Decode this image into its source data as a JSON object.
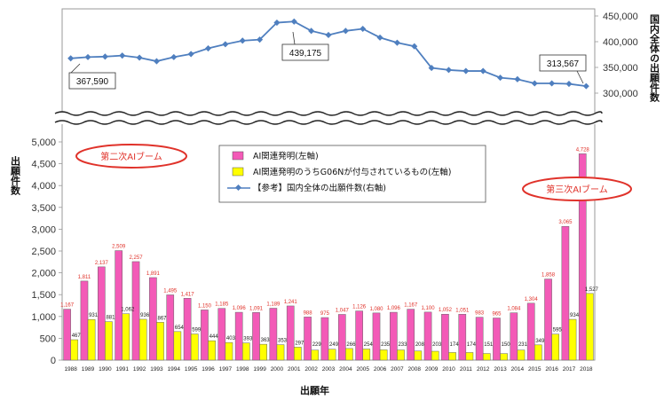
{
  "chart_data": {
    "type": "bar",
    "years": [
      "1988",
      "1989",
      "1990",
      "1991",
      "1992",
      "1993",
      "1994",
      "1995",
      "1996",
      "1997",
      "1998",
      "1999",
      "2000",
      "2001",
      "2002",
      "2003",
      "2004",
      "2005",
      "2006",
      "2007",
      "2008",
      "2009",
      "2010",
      "2011",
      "2012",
      "2013",
      "2014",
      "2015",
      "2016",
      "2017",
      "2018"
    ],
    "series": [
      {
        "name": "AI関連発明(左軸)",
        "kind": "bar",
        "color": "#f35ab7",
        "values": [
          1167,
          1811,
          2137,
          2509,
          2257,
          1891,
          1495,
          1417,
          1150,
          1185,
          1096,
          1091,
          1189,
          1241,
          988,
          975,
          1047,
          1126,
          1080,
          1096,
          1167,
          1100,
          1052,
          1051,
          983,
          965,
          1084,
          1304,
          1858,
          3065,
          4728
        ],
        "labels": [
          "1,167",
          "1,811",
          "2,137",
          "2,509",
          "2,257",
          "1,891",
          "1,495",
          "1,417",
          "1,150",
          "1,185",
          "1,096",
          "1,091",
          "1,189",
          "1,241",
          "988",
          "975",
          "1,047",
          "1,126",
          "1,080",
          "1,096",
          "1,167",
          "1,100",
          "1,052",
          "1,051",
          "983",
          "965",
          "1,084",
          "1,304",
          "1,858",
          "3,065",
          "4,728"
        ]
      },
      {
        "name": "AI関連発明のうちG06Nが付与されているもの(左軸)",
        "kind": "bar",
        "color": "#ffff00",
        "values": [
          467,
          931,
          881,
          1062,
          936,
          867,
          654,
          599,
          444,
          403,
          393,
          363,
          353,
          297,
          229,
          249,
          266,
          254,
          235,
          233,
          208,
          203,
          174,
          174,
          151,
          150,
          231,
          349,
          595,
          934,
          1527
        ],
        "labels": [
          "467",
          "931",
          "881",
          "1,062",
          "936",
          "867",
          "654",
          "599",
          "444",
          "403",
          "393",
          "363",
          "353",
          "297",
          "229",
          "249",
          "266",
          "254",
          "235",
          "233",
          "208",
          "203",
          "174",
          "174",
          "151",
          "150",
          "231",
          "349",
          "595",
          "934",
          "1,527"
        ]
      },
      {
        "name": "【参考】国内全体の出願件数(右軸)",
        "kind": "line",
        "color": "#4f7fbf",
        "values": [
          367590,
          370000,
          371000,
          373000,
          369000,
          362000,
          370000,
          376000,
          387000,
          395000,
          402000,
          404000,
          437000,
          439175,
          421000,
          413000,
          421000,
          425000,
          408000,
          398000,
          391000,
          349000,
          345000,
          343000,
          343000,
          330000,
          327000,
          319000,
          319000,
          318000,
          313567
        ]
      }
    ],
    "left_axis": {
      "title": "出願件数",
      "min": 0,
      "max": 5000,
      "step": 500,
      "ticks": [
        "0",
        "500",
        "1,000",
        "1,500",
        "2,000",
        "2,500",
        "3,000",
        "3,500",
        "4,000",
        "4,500",
        "5,000"
      ]
    },
    "right_axis": {
      "title": "国内全体の出願件数",
      "min": 300000,
      "max": 450000,
      "ticks": [
        "300,000",
        "350,000",
        "400,000",
        "450,000"
      ]
    },
    "x_axis": {
      "title": "出願年"
    },
    "callouts": {
      "first": "367,590",
      "peak": "439,175",
      "last": "313,567"
    },
    "booms": {
      "second": "第二次AIブーム",
      "third": "第三次AIブーム"
    },
    "legend": {
      "placement": "center-top"
    }
  }
}
